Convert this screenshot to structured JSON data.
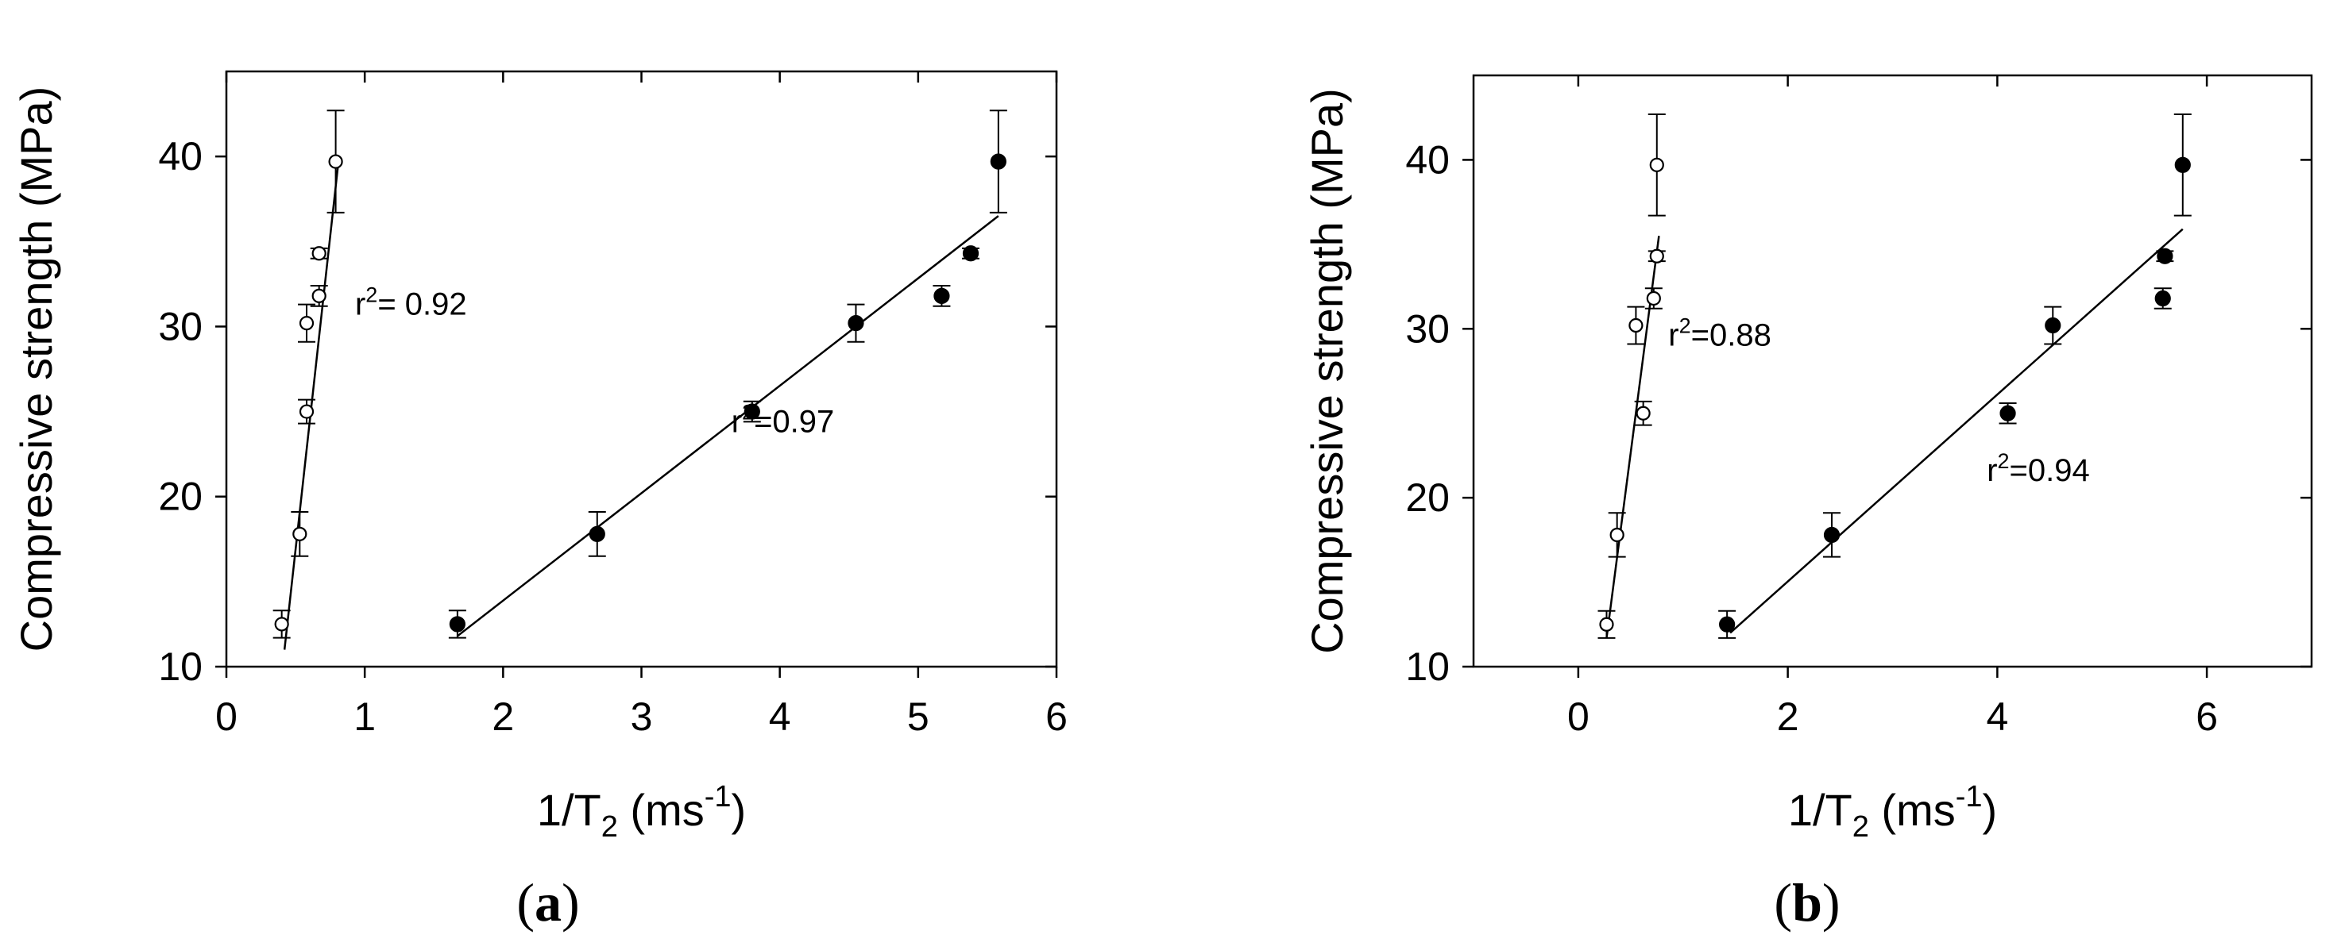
{
  "chart_data": [
    {
      "type": "scatter",
      "panel_label": "a",
      "ylabel": "Compressive strength (MPa)",
      "xlabel_base": "1/T",
      "xlabel_sub": "2",
      "xlabel_unit": " (ms",
      "xlabel_sup": "-1",
      "xlabel_close": ")",
      "xlim": [
        0,
        6
      ],
      "ylim": [
        10,
        45
      ],
      "xticks": [
        0,
        1,
        2,
        3,
        4,
        5,
        6
      ],
      "yticks": [
        10,
        20,
        30,
        40
      ],
      "grid": false,
      "series": [
        {
          "marker": "open-circle",
          "points": [
            {
              "x": 0.4,
              "y": 12.5,
              "err": 0.8
            },
            {
              "x": 0.53,
              "y": 17.8,
              "err": 1.3
            },
            {
              "x": 0.58,
              "y": 25.0,
              "err": 0.7
            },
            {
              "x": 0.58,
              "y": 30.2,
              "err": 1.1
            },
            {
              "x": 0.67,
              "y": 31.8,
              "err": 0.6
            },
            {
              "x": 0.67,
              "y": 34.3,
              "err": 0.3
            },
            {
              "x": 0.79,
              "y": 39.7,
              "err": 3.0
            }
          ],
          "fit": {
            "x1": 0.42,
            "y1": 11.0,
            "x2": 0.81,
            "y2": 39.7
          },
          "r2_base": "r",
          "r2_sup": "2",
          "r2_value": "= 0.92",
          "r2_at": {
            "x": 0.93,
            "y": 30.7
          }
        },
        {
          "marker": "filled-circle",
          "points": [
            {
              "x": 1.67,
              "y": 12.5,
              "err": 0.8
            },
            {
              "x": 2.68,
              "y": 17.8,
              "err": 1.3
            },
            {
              "x": 3.8,
              "y": 25.0,
              "err": 0.6
            },
            {
              "x": 4.55,
              "y": 30.2,
              "err": 1.1
            },
            {
              "x": 5.17,
              "y": 31.8,
              "err": 0.6
            },
            {
              "x": 5.38,
              "y": 34.3,
              "err": 0.3
            },
            {
              "x": 5.58,
              "y": 39.7,
              "err": 3.0
            }
          ],
          "fit": {
            "x1": 1.67,
            "y1": 11.8,
            "x2": 5.58,
            "y2": 36.5
          },
          "r2_base": "r",
          "r2_sup": "2",
          "r2_value": "=0.97",
          "r2_at": {
            "x": 3.65,
            "y": 23.8
          }
        }
      ]
    },
    {
      "type": "scatter",
      "panel_label": "b",
      "ylabel": "Compressive strength (MPa)",
      "xlabel_base": "1/T",
      "xlabel_sub": "2",
      "xlabel_unit": " (ms",
      "xlabel_sup": "-1",
      "xlabel_close": ")",
      "xlim": [
        -1,
        7
      ],
      "ylim": [
        10,
        45
      ],
      "xticks": [
        0,
        2,
        4,
        6
      ],
      "yticks": [
        10,
        20,
        30,
        40
      ],
      "grid": false,
      "series": [
        {
          "marker": "open-circle",
          "points": [
            {
              "x": 0.27,
              "y": 12.5,
              "err": 0.8
            },
            {
              "x": 0.37,
              "y": 17.8,
              "err": 1.3
            },
            {
              "x": 0.62,
              "y": 25.0,
              "err": 0.7
            },
            {
              "x": 0.55,
              "y": 30.2,
              "err": 1.1
            },
            {
              "x": 0.72,
              "y": 31.8,
              "err": 0.6
            },
            {
              "x": 0.75,
              "y": 34.3,
              "err": 0.3
            },
            {
              "x": 0.75,
              "y": 39.7,
              "err": 3.0
            }
          ],
          "fit": {
            "x1": 0.27,
            "y1": 11.7,
            "x2": 0.77,
            "y2": 35.5
          },
          "r2_base": "r",
          "r2_sup": "2",
          "r2_value": "=0.88",
          "r2_at": {
            "x": 0.86,
            "y": 29.0
          }
        },
        {
          "marker": "filled-circle",
          "points": [
            {
              "x": 1.42,
              "y": 12.5,
              "err": 0.8
            },
            {
              "x": 2.42,
              "y": 17.8,
              "err": 1.3
            },
            {
              "x": 4.1,
              "y": 25.0,
              "err": 0.6
            },
            {
              "x": 4.53,
              "y": 30.2,
              "err": 1.1
            },
            {
              "x": 5.58,
              "y": 31.8,
              "err": 0.6
            },
            {
              "x": 5.6,
              "y": 34.3,
              "err": 0.3
            },
            {
              "x": 5.77,
              "y": 39.7,
              "err": 3.0
            }
          ],
          "fit": {
            "x1": 1.45,
            "y1": 12.0,
            "x2": 5.77,
            "y2": 35.9
          },
          "r2_base": "r",
          "r2_sup": "2",
          "r2_value": "=0.94",
          "r2_at": {
            "x": 3.9,
            "y": 21.0
          }
        }
      ]
    }
  ]
}
